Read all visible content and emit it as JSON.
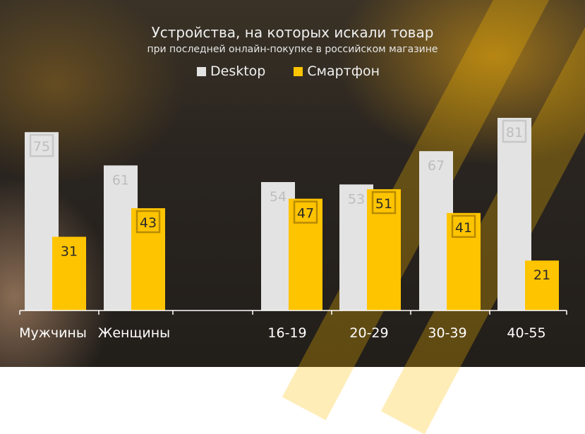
{
  "chart_data": {
    "type": "bar",
    "title": "Устройства, на которых искали товар",
    "subtitle": "при последней онлайн-покупке в российском магазине",
    "categories": [
      "Мужчины",
      "Женщины",
      "",
      "16-19",
      "20-29",
      "30-39",
      "40-55"
    ],
    "series": [
      {
        "name": "Desktop",
        "values": [
          75,
          61,
          null,
          54,
          53,
          67,
          81
        ]
      },
      {
        "name": "Смартфон",
        "values": [
          31,
          43,
          null,
          47,
          51,
          41,
          21
        ]
      }
    ],
    "boxed_labels": {
      "Desktop": [
        true,
        false,
        false,
        false,
        false,
        false,
        true
      ],
      "Смартфон": [
        false,
        true,
        false,
        true,
        true,
        true,
        false
      ]
    },
    "ylim": [
      0,
      81
    ],
    "legend_position": "top-center",
    "grid": false
  },
  "colors": {
    "Desktop": "#e3e3e3",
    "Смартфон": "#ffc400",
    "desktop_label": "#bdbdbd",
    "smartphone_label": "#2a2a2a",
    "axis": "#ffffff"
  }
}
